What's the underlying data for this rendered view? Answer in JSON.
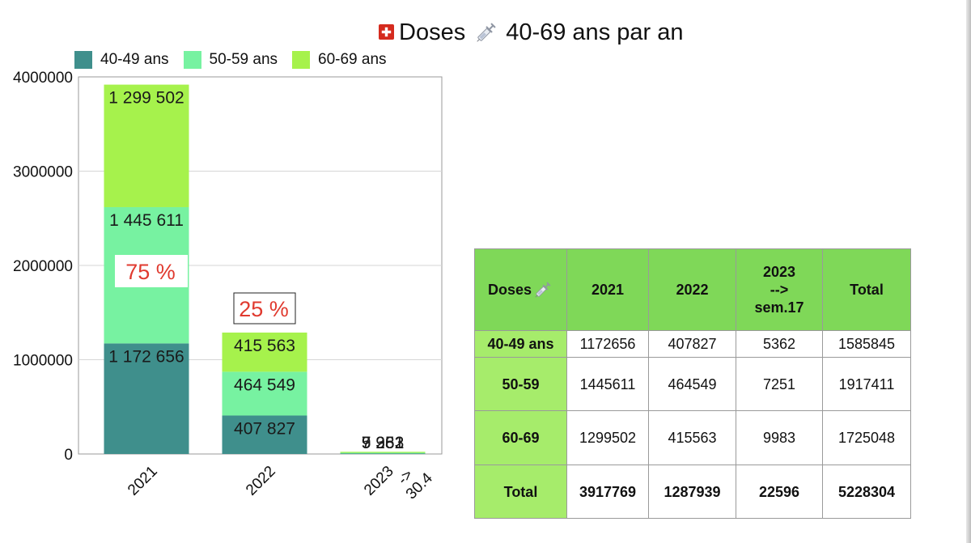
{
  "title": {
    "flag_icon": "swiss-flag-icon",
    "prefix": "Doses",
    "syringe_icon": "syringe-icon",
    "suffix": "40-69 ans par an"
  },
  "legend": [
    {
      "label": "40-49 ans",
      "color": "#3f8f8c"
    },
    {
      "label": "50-59 ans",
      "color": "#77f2a1"
    },
    {
      "label": "60-69 ans",
      "color": "#a6f24c"
    }
  ],
  "chart_data": {
    "type": "bar",
    "stacked": true,
    "title": "Doses 40-69 ans par an",
    "categories": [
      "2021",
      "2022",
      "2023\n->\n30.4"
    ],
    "series": [
      {
        "name": "40-49 ans",
        "color": "#3f8f8c",
        "values": [
          1172656,
          407827,
          5362
        ],
        "labels": [
          "1 172 656",
          "407 827",
          "5 362"
        ]
      },
      {
        "name": "50-59 ans",
        "color": "#77f2a1",
        "values": [
          1445611,
          464549,
          7251
        ],
        "labels": [
          "1 445 611",
          "464 549",
          "7 251"
        ]
      },
      {
        "name": "60-69 ans",
        "color": "#a6f24c",
        "values": [
          1299502,
          415563,
          9983
        ],
        "labels": [
          "1 299 502",
          "415 563",
          "9 983"
        ]
      }
    ],
    "ylim": [
      0,
      4000000
    ],
    "yticks": [
      "0",
      "1000000",
      "2000000",
      "3000000",
      "4000000"
    ],
    "grid": true,
    "legend_position": "top-left",
    "annotations": [
      {
        "text": "75 %",
        "category": "2021",
        "color": "#e03a2f",
        "boxed": false
      },
      {
        "text": "25 %",
        "category": "2022",
        "color": "#e03a2f",
        "boxed": true
      }
    ]
  },
  "table": {
    "header_doses": "Doses",
    "header_icon": "syringe-icon",
    "columns": [
      "2021",
      "2022",
      "2023\n-->\nsem.17",
      "Total"
    ],
    "rows": [
      {
        "label": "40-49 ans",
        "cells": [
          "1172656",
          "407827",
          "5362",
          "1585845"
        ]
      },
      {
        "label": "50-59",
        "cells": [
          "1445611",
          "464549",
          "7251",
          "1917411"
        ]
      },
      {
        "label": "60-69",
        "cells": [
          "1299502",
          "415563",
          "9983",
          "1725048"
        ]
      },
      {
        "label": "Total",
        "cells": [
          "3917769",
          "1287939",
          "22596",
          "5228304"
        ]
      }
    ],
    "header_color": "#7fd858",
    "label_color": "#a6ec6b"
  }
}
